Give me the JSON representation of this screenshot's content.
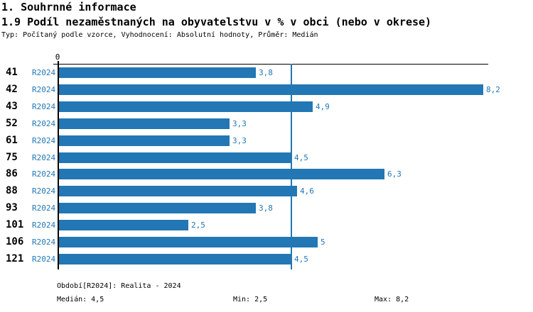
{
  "page": {
    "title1": "1. Souhrnné informace",
    "title2": "1.9 Podíl nezaměstnaných na obyvatelstvu v % v obci (nebo v okrese)",
    "subtitle": "Typ: Počítaný podle vzorce, Vyhodnocení: Absolutní hodnoty, Průměr: Medián"
  },
  "chart_data": {
    "type": "bar",
    "orientation": "horizontal",
    "title": "1.9 Podíl nezaměstnaných na obyvatelstvu v % v obci (nebo v okrese)",
    "categories": [
      "41",
      "42",
      "43",
      "52",
      "61",
      "75",
      "86",
      "88",
      "93",
      "101",
      "106",
      "121"
    ],
    "series": [
      {
        "name": "R2024",
        "values": [
          3.8,
          8.2,
          4.9,
          3.3,
          3.3,
          4.5,
          6.3,
          4.6,
          3.8,
          2.5,
          5,
          4.5
        ],
        "value_labels": [
          "3,8",
          "8,2",
          "4,9",
          "3,3",
          "3,3",
          "4,5",
          "6,3",
          "4,6",
          "3,8",
          "2,5",
          "5",
          "4,5"
        ]
      }
    ],
    "axis_origin_label": "0",
    "xlim": [
      0,
      8.3
    ],
    "median_value": 4.5,
    "grid": false,
    "legend_position": "none",
    "colors": {
      "bar": "#2277b4",
      "median_line": "#2277b4",
      "value_text": "#2277b4",
      "series_text": "#2277b4",
      "axis": "#000000"
    }
  },
  "footer": {
    "period": "Období[R2024]: Realita - 2024",
    "median": "Medián: 4,5",
    "min": "Min: 2,5",
    "max": "Max: 8,2"
  }
}
